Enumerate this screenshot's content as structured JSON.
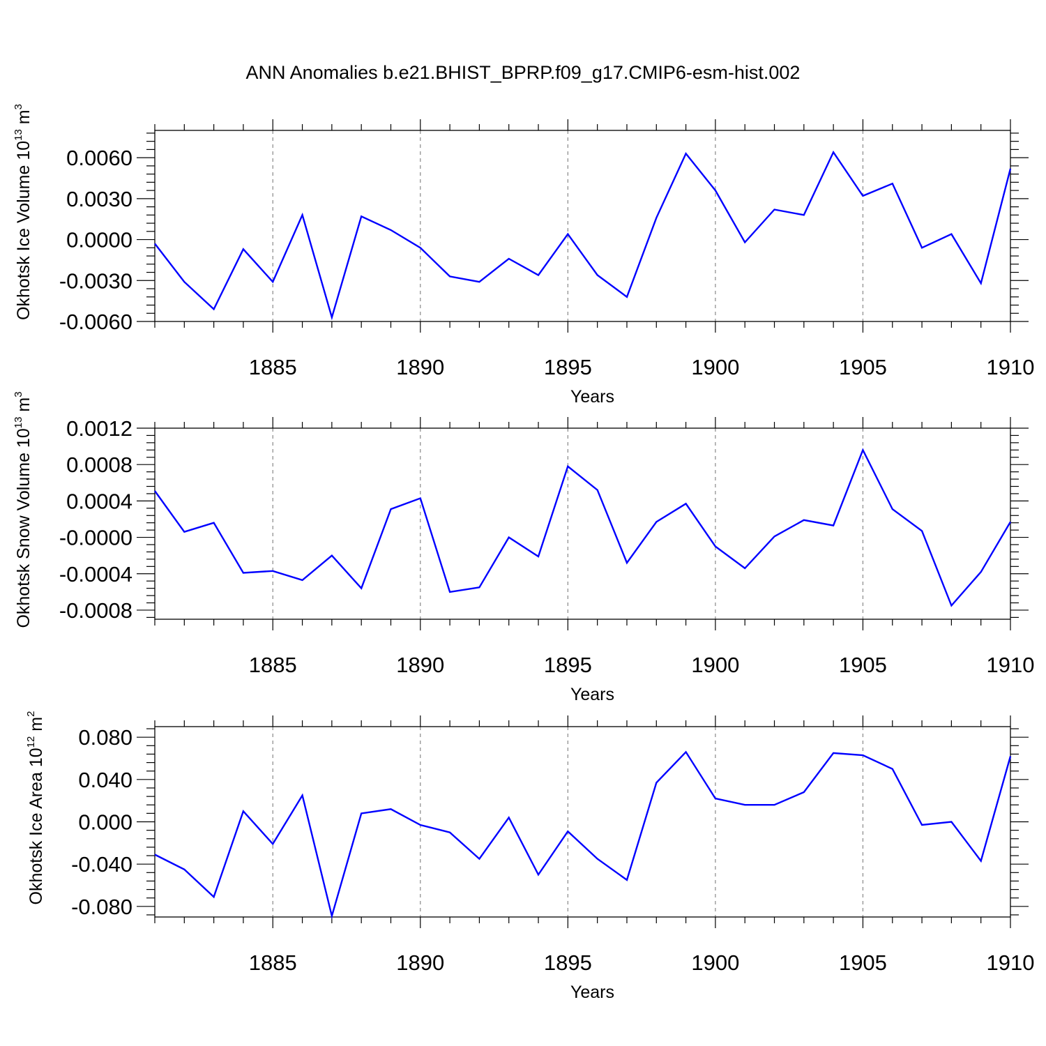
{
  "title": "ANN Anomalies b.e21.BHIST_BPRP.f09_g17.CMIP6-esm-hist.002",
  "chart_data": [
    {
      "type": "line",
      "ylabel": {
        "base": "Okhotsk Ice Volume 10",
        "exp": "13",
        "unit": " m",
        "unit_exp": "3"
      },
      "xlabel": "Years",
      "xlim": [
        1881,
        1910
      ],
      "ylim": [
        -0.006,
        0.008
      ],
      "x_ticks": [
        1885,
        1890,
        1895,
        1900,
        1905,
        1910
      ],
      "y_ticks": [
        {
          "value": -0.006,
          "label": "-0.0060"
        },
        {
          "value": -0.003,
          "label": "-0.0030"
        },
        {
          "value": 0.0,
          "label": "0.0000"
        },
        {
          "value": 0.003,
          "label": "0.0030"
        },
        {
          "value": 0.006,
          "label": "0.0060"
        }
      ],
      "series": [
        {
          "name": "Okhotsk Ice Volume",
          "color": "#0000ff",
          "x": [
            1881,
            1882,
            1883,
            1884,
            1885,
            1886,
            1887,
            1888,
            1889,
            1890,
            1891,
            1892,
            1893,
            1894,
            1895,
            1896,
            1897,
            1898,
            1899,
            1900,
            1901,
            1902,
            1903,
            1904,
            1905,
            1906,
            1907,
            1908,
            1909,
            1910
          ],
          "values": [
            -0.0003,
            -0.0031,
            -0.0051,
            -0.0007,
            -0.0031,
            0.0018,
            -0.0057,
            0.0017,
            0.0007,
            -0.0006,
            -0.0027,
            -0.0031,
            -0.0014,
            -0.0026,
            0.0004,
            -0.0026,
            -0.0042,
            0.0016,
            0.0063,
            0.0036,
            -0.0002,
            0.0022,
            0.0018,
            0.0064,
            0.0032,
            0.0041,
            -0.0006,
            0.0004,
            -0.0032,
            0.0052
          ]
        }
      ]
    },
    {
      "type": "line",
      "ylabel": {
        "base": "Okhotsk Snow Volume 10",
        "exp": "13",
        "unit": " m",
        "unit_exp": "3"
      },
      "xlabel": "Years",
      "xlim": [
        1881,
        1910
      ],
      "ylim": [
        -0.0009,
        0.0012
      ],
      "x_ticks": [
        1885,
        1890,
        1895,
        1900,
        1905,
        1910
      ],
      "y_ticks": [
        {
          "value": -0.0008,
          "label": "-0.0008"
        },
        {
          "value": -0.0004,
          "label": "-0.0004"
        },
        {
          "value": 0.0,
          "label": "-0.0000"
        },
        {
          "value": 0.0004,
          "label": "0.0004"
        },
        {
          "value": 0.0008,
          "label": "0.0008"
        },
        {
          "value": 0.0012,
          "label": "0.0012"
        }
      ],
      "series": [
        {
          "name": "Okhotsk Snow Volume",
          "color": "#0000ff",
          "x": [
            1881,
            1882,
            1883,
            1884,
            1885,
            1886,
            1887,
            1888,
            1889,
            1890,
            1891,
            1892,
            1893,
            1894,
            1895,
            1896,
            1897,
            1898,
            1899,
            1900,
            1901,
            1902,
            1903,
            1904,
            1905,
            1906,
            1907,
            1908,
            1909,
            1910
          ],
          "values": [
            0.00051,
            6e-05,
            0.00016,
            -0.00039,
            -0.00037,
            -0.00047,
            -0.0002,
            -0.00056,
            0.00031,
            0.00043,
            -0.0006,
            -0.00055,
            0.0,
            -0.00021,
            0.00078,
            0.00052,
            -0.00028,
            0.00017,
            0.00037,
            -0.0001,
            -0.00034,
            1e-05,
            0.00019,
            0.00013,
            0.00096,
            0.00031,
            7e-05,
            -0.00075,
            -0.00038,
            0.00017
          ]
        }
      ]
    },
    {
      "type": "line",
      "ylabel": {
        "base": "Okhotsk Ice Area 10",
        "exp": "12",
        "unit": " m",
        "unit_exp": "2"
      },
      "xlabel": "Years",
      "xlim": [
        1881,
        1910
      ],
      "ylim": [
        -0.09,
        0.09
      ],
      "x_ticks": [
        1885,
        1890,
        1895,
        1900,
        1905,
        1910
      ],
      "y_ticks": [
        {
          "value": -0.08,
          "label": "-0.080"
        },
        {
          "value": -0.04,
          "label": "-0.040"
        },
        {
          "value": 0.0,
          "label": "0.000"
        },
        {
          "value": 0.04,
          "label": "0.040"
        },
        {
          "value": 0.08,
          "label": "0.080"
        }
      ],
      "series": [
        {
          "name": "Okhotsk Ice Area",
          "color": "#0000ff",
          "x": [
            1881,
            1882,
            1883,
            1884,
            1885,
            1886,
            1887,
            1888,
            1889,
            1890,
            1891,
            1892,
            1893,
            1894,
            1895,
            1896,
            1897,
            1898,
            1899,
            1900,
            1901,
            1902,
            1903,
            1904,
            1905,
            1906,
            1907,
            1908,
            1909,
            1910
          ],
          "values": [
            -0.031,
            -0.045,
            -0.071,
            0.01,
            -0.021,
            0.025,
            -0.089,
            0.008,
            0.012,
            -0.003,
            -0.01,
            -0.035,
            0.004,
            -0.05,
            -0.009,
            -0.035,
            -0.055,
            0.037,
            0.066,
            0.022,
            0.016,
            0.016,
            0.028,
            0.065,
            0.063,
            0.05,
            -0.003,
            0.0,
            -0.037,
            0.062
          ]
        }
      ]
    }
  ]
}
